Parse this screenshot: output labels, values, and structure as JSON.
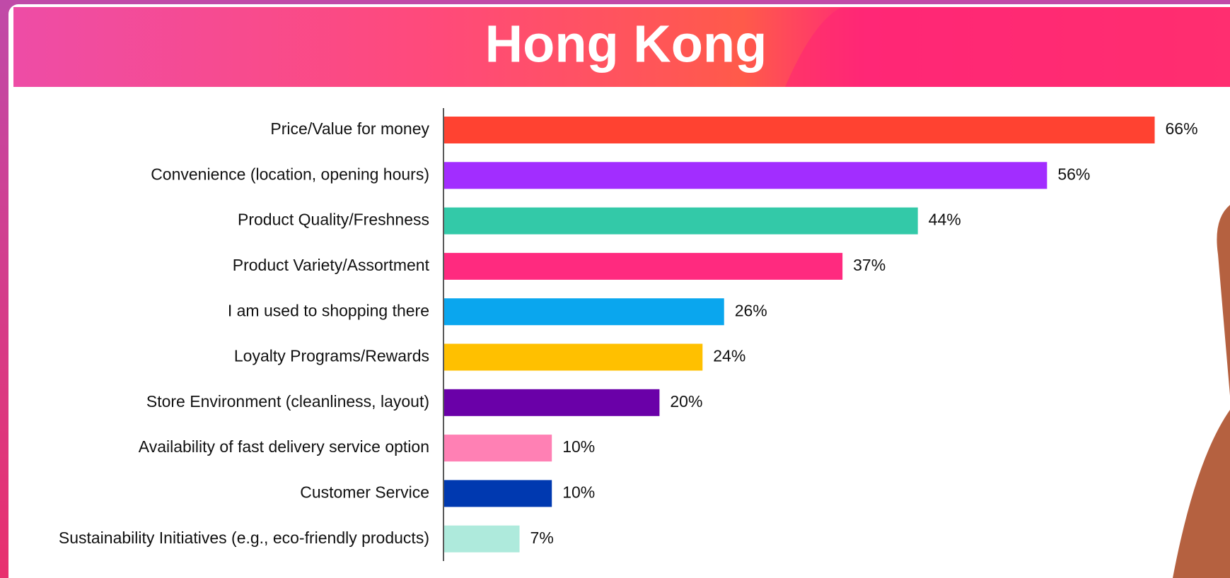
{
  "chart_data": {
    "type": "bar",
    "orientation": "horizontal",
    "title": "Hong Kong",
    "categories": [
      "Price/Value for money",
      "Convenience (location, opening hours)",
      "Product Quality/Freshness",
      "Product Variety/Assortment",
      "I am used to shopping there",
      "Loyalty Programs/Rewards",
      "Store Environment (cleanliness, layout)",
      "Availability of fast delivery service option",
      "Customer Service",
      "Sustainability Initiatives (e.g., eco-friendly products)"
    ],
    "values": [
      66,
      56,
      44,
      37,
      26,
      24,
      20,
      10,
      10,
      7
    ],
    "value_labels": [
      "66%",
      "56%",
      "44%",
      "37%",
      "26%",
      "24%",
      "20%",
      "10%",
      "10%",
      "7%"
    ],
    "colors": [
      "#ff4231",
      "#a22dff",
      "#33c9a8",
      "#ff2a7f",
      "#0aa6ee",
      "#ffc000",
      "#6a00a8",
      "#ff80b4",
      "#0039b0",
      "#aeeadc"
    ]
  }
}
